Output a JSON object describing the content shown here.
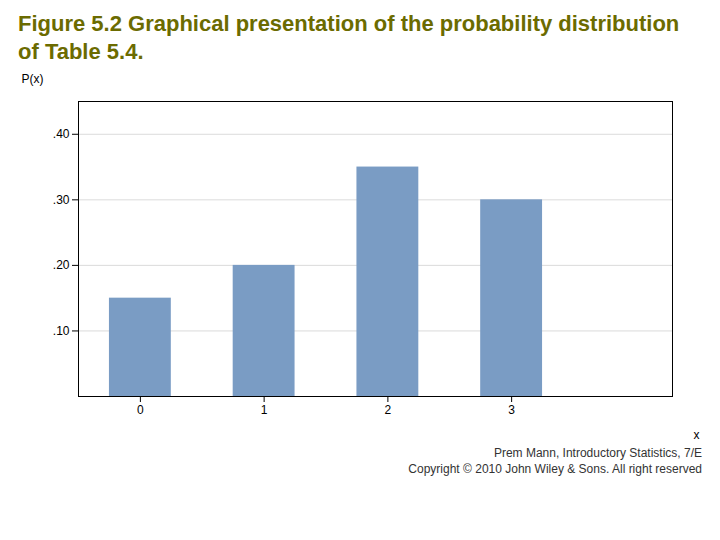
{
  "chart_data": {
    "type": "bar",
    "title": "Figure 5.2 Graphical presentation of the probability distribution of Table 5.4.",
    "x": [
      0,
      1,
      2,
      3
    ],
    "values": [
      0.15,
      0.2,
      0.35,
      0.3
    ],
    "color": "#7a9cc4",
    "xlabel": "x",
    "ylabel": "P(x)",
    "xlim": [
      -0.5,
      4.3
    ],
    "xticks": [
      0,
      1,
      2,
      3
    ],
    "ylim": [
      0,
      0.45
    ],
    "yticks": [
      {
        "value": 0.1,
        "label": ".10"
      },
      {
        "value": 0.2,
        "label": ".20"
      },
      {
        "value": 0.3,
        "label": ".30"
      },
      {
        "value": 0.4,
        "label": ".40"
      }
    ],
    "grid": true,
    "annotations": [
      "Prem Mann, Introductory Statistics, 7/E",
      "Copyright © 2010 John Wiley & Sons. All right reserved"
    ]
  }
}
